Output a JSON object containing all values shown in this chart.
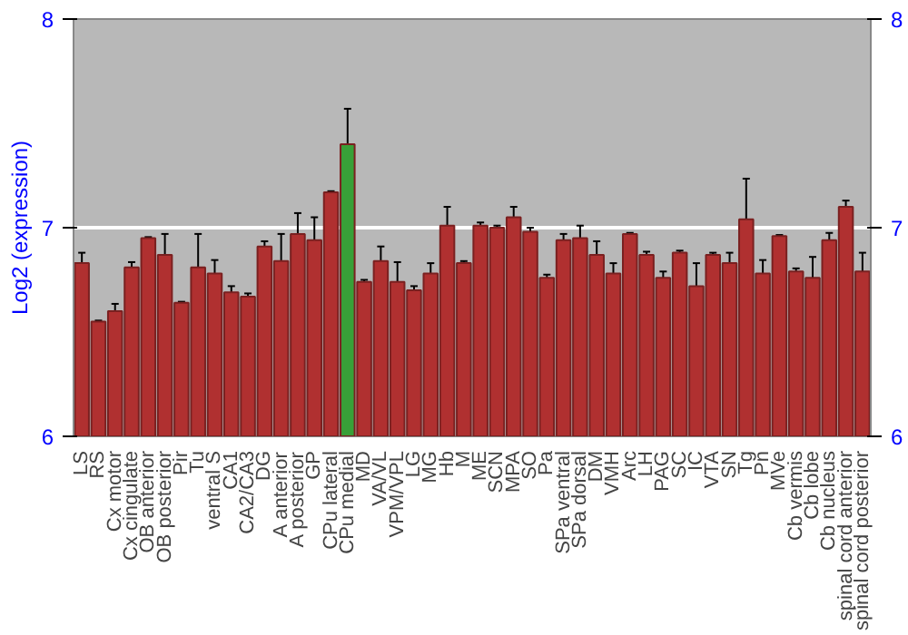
{
  "chart_data": {
    "type": "bar",
    "ylabel": "Log2 (expression)",
    "categories": [
      "LS",
      "RS",
      "Cx motor",
      "Cx cingulate",
      "OB anterior",
      "OB posterior",
      "Pir",
      "Tu",
      "ventral S",
      "CA1",
      "CA2/CA3",
      "DG",
      "A anterior",
      "A posterior",
      "GP",
      "CPu lateral",
      "CPu medial",
      "MD",
      "VA/VL",
      "VPM/VPL",
      "LG",
      "MG",
      "Hb",
      "M",
      "ME",
      "SCN",
      "MPA",
      "SO",
      "Pa",
      "SPa ventral",
      "SPa dorsal",
      "DM",
      "VMH",
      "Arc",
      "LH",
      "PAG",
      "SC",
      "IC",
      "VTA",
      "SN",
      "Tg",
      "Pn",
      "MVe",
      "Cb vermis",
      "Cb lobe",
      "Cb nucleus",
      "spinal cord anterior",
      "spinal cord posterior"
    ],
    "values": [
      6.83,
      6.55,
      6.6,
      6.81,
      6.95,
      6.87,
      6.64,
      6.81,
      6.78,
      6.69,
      6.67,
      6.91,
      6.84,
      6.97,
      6.94,
      7.17,
      7.4,
      6.74,
      6.84,
      6.74,
      6.7,
      6.78,
      7.01,
      6.83,
      7.01,
      7.0,
      7.05,
      6.98,
      6.76,
      6.94,
      6.95,
      6.87,
      6.78,
      6.97,
      6.87,
      6.76,
      6.88,
      6.72,
      6.87,
      6.83,
      7.04,
      6.78,
      6.96,
      6.79,
      6.76,
      6.94,
      7.1,
      6.79
    ],
    "errors": [
      0.05,
      0.005,
      0.035,
      0.025,
      0.005,
      0.1,
      0.005,
      0.16,
      0.065,
      0.03,
      0.015,
      0.025,
      0.13,
      0.1,
      0.11,
      0.005,
      0.17,
      0.01,
      0.07,
      0.095,
      0.02,
      0.05,
      0.09,
      0.01,
      0.015,
      0.01,
      0.05,
      0.02,
      0.015,
      0.03,
      0.06,
      0.065,
      0.05,
      0.005,
      0.015,
      0.03,
      0.01,
      0.11,
      0.01,
      0.05,
      0.195,
      0.065,
      0.005,
      0.015,
      0.1,
      0.035,
      0.03,
      0.09
    ],
    "colors": [
      "#b03030",
      "#b03030",
      "#b03030",
      "#b03030",
      "#b03030",
      "#b03030",
      "#b03030",
      "#b03030",
      "#b03030",
      "#b03030",
      "#b03030",
      "#b03030",
      "#b03030",
      "#b03030",
      "#b03030",
      "#b03030",
      "#38a038",
      "#b03030",
      "#b03030",
      "#b03030",
      "#b03030",
      "#b03030",
      "#b03030",
      "#b03030",
      "#b03030",
      "#b03030",
      "#b03030",
      "#b03030",
      "#b03030",
      "#b03030",
      "#b03030",
      "#b03030",
      "#b03030",
      "#b03030",
      "#b03030",
      "#b03030",
      "#b03030",
      "#b03030",
      "#b03030",
      "#b03030",
      "#b03030",
      "#b03030",
      "#b03030",
      "#b03030",
      "#b03030",
      "#b03030",
      "#b03030",
      "#b03030"
    ],
    "ylim": [
      6,
      8
    ],
    "yticks": [
      6,
      7,
      8
    ],
    "y2lim": [
      6,
      8
    ],
    "y2ticks": [
      6,
      7,
      8
    ],
    "grid": "y"
  }
}
